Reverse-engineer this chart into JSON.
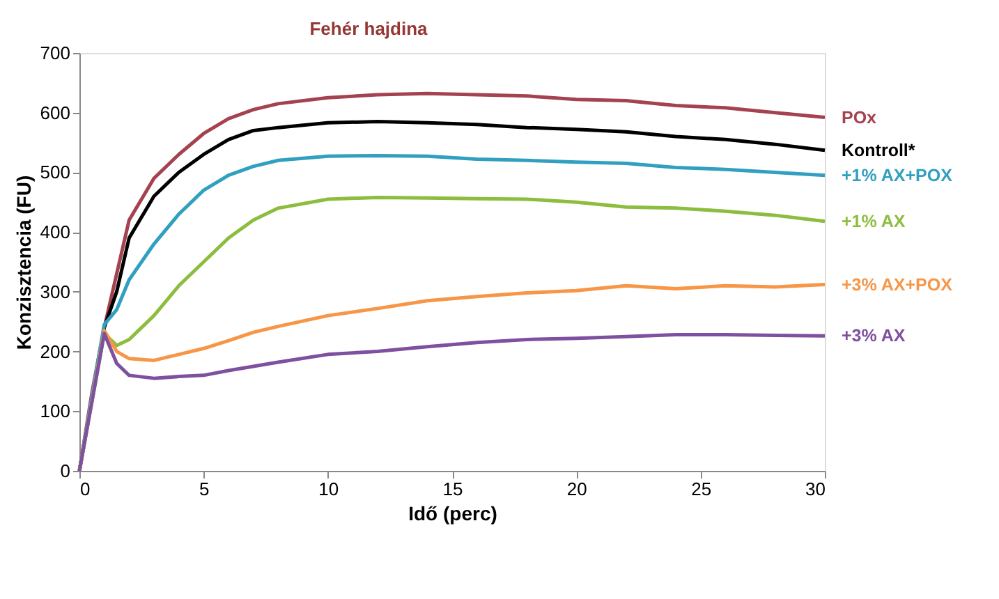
{
  "chart_data": {
    "type": "line",
    "title": "Fehér hajdina",
    "xlabel": "Idő (perc)",
    "ylabel": "Konzisztencia (FU)",
    "x": [
      0,
      0.5,
      1,
      1.5,
      2,
      3,
      4,
      5,
      6,
      7,
      8,
      10,
      12,
      14,
      16,
      18,
      20,
      22,
      24,
      26,
      28,
      30
    ],
    "xlim": [
      0,
      30
    ],
    "xticks": [
      0,
      5,
      10,
      15,
      20,
      25,
      30
    ],
    "ylim": [
      0,
      700
    ],
    "yticks": [
      0,
      100,
      200,
      300,
      400,
      500,
      600,
      700
    ],
    "grid": false,
    "legend": false,
    "marker": "none",
    "line_style": "solid",
    "series": [
      {
        "name": "POx",
        "color": "#a5424f",
        "values": [
          0,
          130,
          240,
          330,
          420,
          490,
          530,
          565,
          590,
          605,
          615,
          625,
          630,
          632,
          630,
          628,
          622,
          620,
          612,
          608,
          600,
          592
        ]
      },
      {
        "name": "Kontroll*",
        "color": "#000000",
        "x": [
          0,
          1,
          1.5,
          2,
          3,
          4,
          5,
          6,
          7,
          8,
          10,
          12,
          14,
          16,
          18,
          20,
          22,
          24,
          26,
          28,
          30
        ],
        "values": [
          0,
          240,
          300,
          390,
          460,
          500,
          530,
          555,
          570,
          575,
          583,
          585,
          583,
          580,
          575,
          572,
          568,
          560,
          555,
          547,
          537
        ]
      },
      {
        "name": "+1% AX+POX",
        "color": "#31a0c0",
        "values": [
          0,
          125,
          245,
          270,
          320,
          380,
          430,
          470,
          495,
          510,
          520,
          527,
          528,
          527,
          522,
          520,
          517,
          515,
          508,
          505,
          500,
          495
        ]
      },
      {
        "name": "+1% AX",
        "color": "#8cbd3f",
        "values": [
          0,
          115,
          230,
          210,
          220,
          260,
          310,
          350,
          390,
          420,
          440,
          455,
          458,
          457,
          456,
          455,
          450,
          442,
          440,
          435,
          428,
          418
        ]
      },
      {
        "name": "+3% AX+POX",
        "color": "#f79646",
        "values": [
          0,
          118,
          235,
          200,
          188,
          185,
          195,
          205,
          218,
          232,
          242,
          260,
          272,
          285,
          292,
          298,
          302,
          310,
          305,
          310,
          308,
          312
        ]
      },
      {
        "name": "+3% AX",
        "color": "#7f4fa0",
        "values": [
          0,
          115,
          230,
          180,
          160,
          155,
          158,
          160,
          168,
          175,
          182,
          195,
          200,
          208,
          215,
          220,
          222,
          225,
          228,
          228,
          227,
          226
        ]
      }
    ]
  }
}
